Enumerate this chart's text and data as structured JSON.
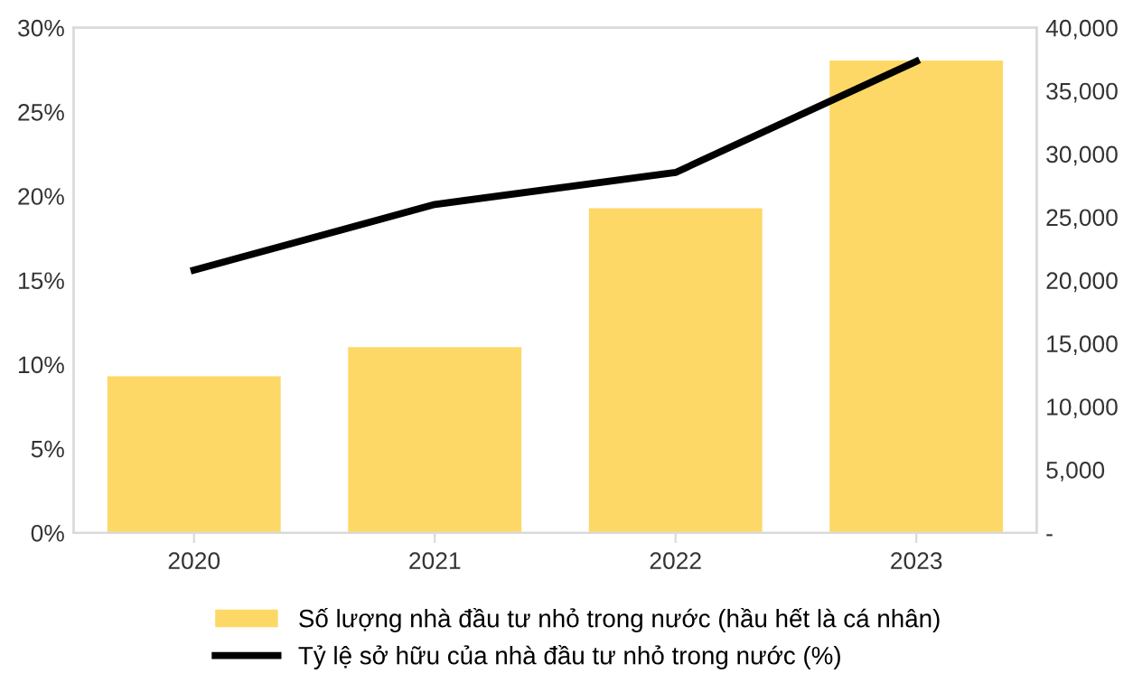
{
  "chart_data": {
    "type": "bar",
    "categories": [
      "2020",
      "2021",
      "2022",
      "2023"
    ],
    "series": [
      {
        "name": "Số lượng nhà đầu tư nhỏ trong nước (hầu hết là cá nhân)",
        "axis": "y2",
        "color": "#fdd866",
        "values": [
          12400,
          14700,
          25700,
          37400
        ]
      },
      {
        "name": "Tỷ lệ sở hữu của nhà đầu tư nhỏ trong nước (%)",
        "type": "line",
        "axis": "y",
        "color": "#000000",
        "values": [
          15.6,
          19.5,
          21.4,
          28.0
        ]
      }
    ],
    "ylim": [
      0,
      30
    ],
    "yticks": [
      {
        "value": 0,
        "label": "0%"
      },
      {
        "value": 5,
        "label": "5%"
      },
      {
        "value": 10,
        "label": "10%"
      },
      {
        "value": 15,
        "label": "15%"
      },
      {
        "value": 20,
        "label": "20%"
      },
      {
        "value": 25,
        "label": "25%"
      },
      {
        "value": 30,
        "label": "30%"
      }
    ],
    "y2lim": [
      0,
      40000
    ],
    "y2ticks": [
      {
        "value": 0,
        "label": "-"
      },
      {
        "value": 5000,
        "label": "5,000"
      },
      {
        "value": 10000,
        "label": "10,000"
      },
      {
        "value": 15000,
        "label": "15,000"
      },
      {
        "value": 20000,
        "label": "20,000"
      },
      {
        "value": 25000,
        "label": "25,000"
      },
      {
        "value": 30000,
        "label": "30,000"
      },
      {
        "value": 35000,
        "label": "35,000"
      },
      {
        "value": 40000,
        "label": "40,000"
      }
    ],
    "grid": false,
    "legend": "bottom"
  }
}
